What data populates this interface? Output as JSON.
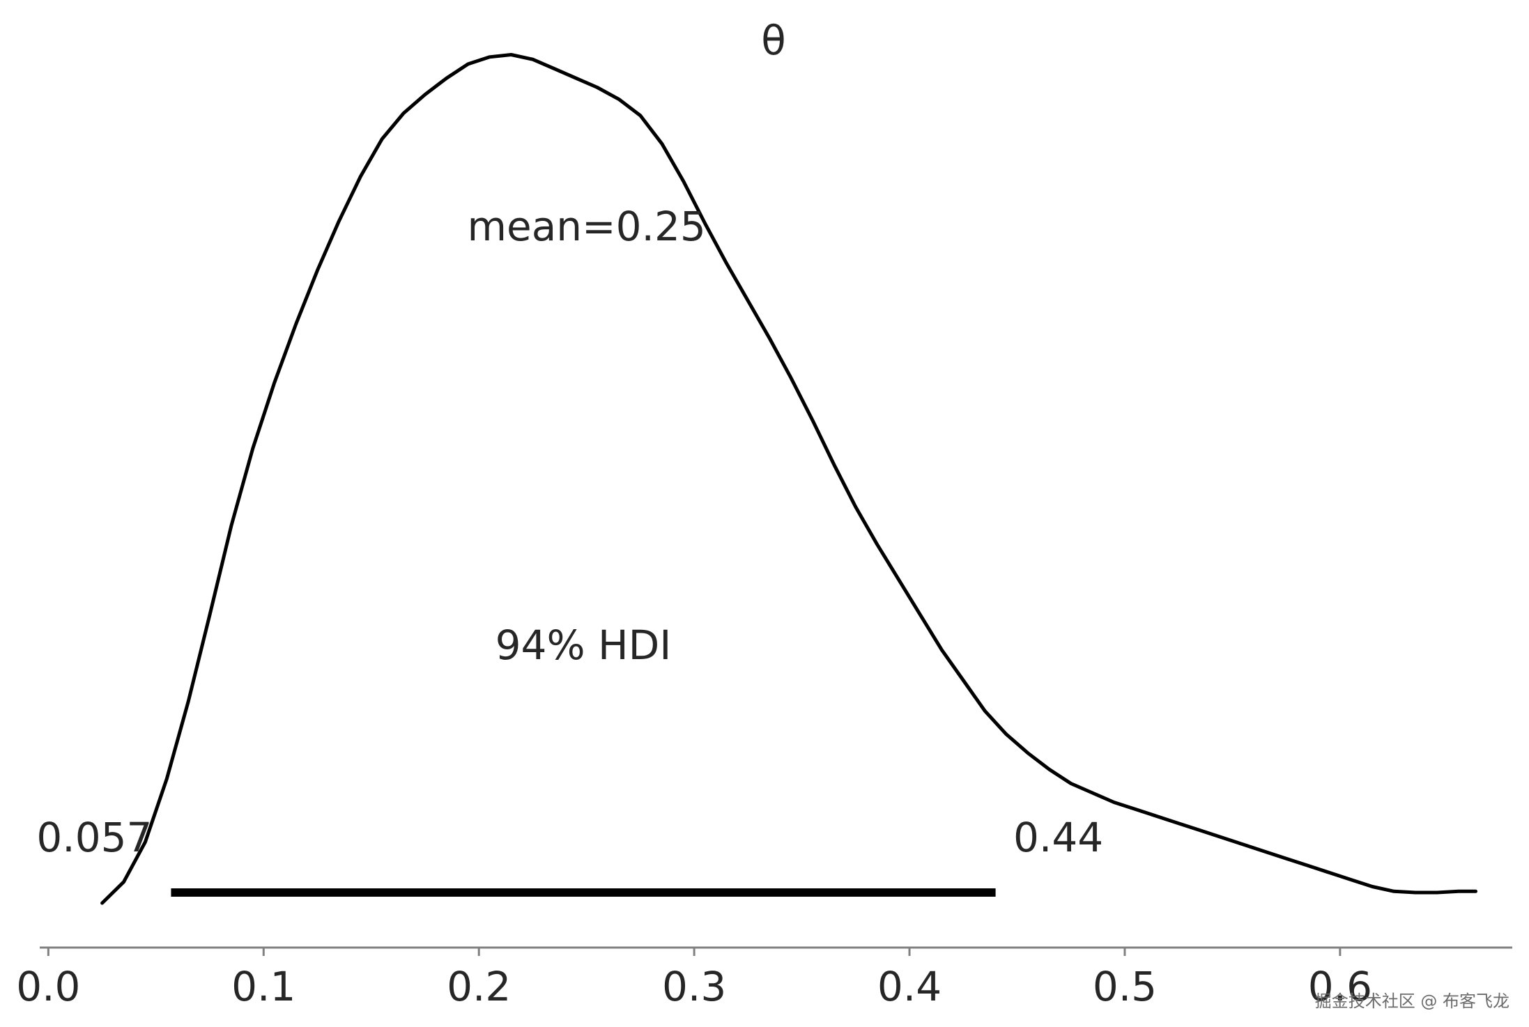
{
  "chart_data": {
    "type": "line",
    "title": "θ",
    "xlabel": "",
    "ylabel": "",
    "xlim": [
      -0.004,
      0.68
    ],
    "ylim": [
      0,
      3.85
    ],
    "grid": false,
    "x_ticks": [
      "0.0",
      "0.1",
      "0.2",
      "0.3",
      "0.4",
      "0.5",
      "0.6"
    ],
    "series": [
      {
        "x": [
          0.025,
          0.035,
          0.045,
          0.055,
          0.065,
          0.075,
          0.085,
          0.095,
          0.105,
          0.115,
          0.125,
          0.135,
          0.145,
          0.155,
          0.165,
          0.175,
          0.185,
          0.195,
          0.205,
          0.215,
          0.225,
          0.235,
          0.245,
          0.255,
          0.265,
          0.275,
          0.285,
          0.295,
          0.305,
          0.315,
          0.325,
          0.335,
          0.345,
          0.355,
          0.365,
          0.375,
          0.385,
          0.395,
          0.405,
          0.415,
          0.425,
          0.435,
          0.445,
          0.455,
          0.465,
          0.475,
          0.485,
          0.495,
          0.505,
          0.515,
          0.525,
          0.535,
          0.545,
          0.555,
          0.565,
          0.575,
          0.585,
          0.595,
          0.605,
          0.615,
          0.625,
          0.635,
          0.645,
          0.655,
          0.663
        ],
        "y": [
          0.19,
          0.28,
          0.45,
          0.72,
          1.05,
          1.42,
          1.8,
          2.13,
          2.41,
          2.66,
          2.89,
          3.1,
          3.29,
          3.45,
          3.56,
          3.64,
          3.71,
          3.77,
          3.8,
          3.81,
          3.79,
          3.75,
          3.71,
          3.67,
          3.62,
          3.55,
          3.43,
          3.27,
          3.09,
          2.92,
          2.76,
          2.6,
          2.43,
          2.25,
          2.06,
          1.88,
          1.72,
          1.57,
          1.42,
          1.27,
          1.14,
          1.01,
          0.91,
          0.83,
          0.76,
          0.7,
          0.66,
          0.62,
          0.59,
          0.56,
          0.53,
          0.5,
          0.47,
          0.44,
          0.41,
          0.38,
          0.35,
          0.32,
          0.29,
          0.26,
          0.24,
          0.235,
          0.235,
          0.24,
          0.24
        ]
      }
    ],
    "hdi": {
      "low": 0.057,
      "high": 0.44,
      "low_label": "0.057",
      "high_label": "0.44",
      "label": "94% HDI"
    },
    "mean": {
      "value": 0.25,
      "label": "mean=0.25"
    }
  },
  "watermark": "掘金技术社区 @ 布客飞龙"
}
